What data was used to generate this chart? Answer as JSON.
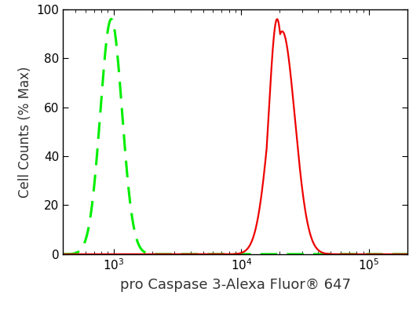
{
  "xlabel": "pro Caspase 3-Alexa Fluor® 647",
  "ylabel": "Cell Counts (% Max)",
  "xlim": [
    400,
    200000
  ],
  "ylim": [
    0,
    100
  ],
  "yticks": [
    0,
    20,
    40,
    60,
    80,
    100
  ],
  "background_color": "#ffffff",
  "green_color": "#00ee00",
  "red_color": "#ee0000",
  "green_peak_log": 2.98,
  "green_sigma_log": 0.085,
  "green_peak_height": 96,
  "red_peak_log1": 4.28,
  "red_sigma_log1": 0.065,
  "red_peak_height1": 96,
  "red_peak_log2": 4.32,
  "red_sigma_log2": 0.1,
  "red_peak_height2": 91,
  "xlabel_fontsize": 13,
  "ylabel_fontsize": 12,
  "tick_fontsize": 11,
  "linewidth_green": 2.2,
  "linewidth_red": 1.6
}
